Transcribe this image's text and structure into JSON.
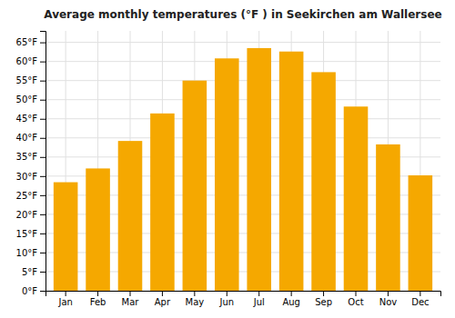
{
  "chart_data": {
    "type": "bar",
    "title": "Average monthly temperatures (°F ) in Seekirchen am Wallersee",
    "categories": [
      "Jan",
      "Feb",
      "Mar",
      "Apr",
      "May",
      "Jun",
      "Jul",
      "Aug",
      "Sep",
      "Oct",
      "Nov",
      "Dec"
    ],
    "values": [
      28.4,
      32.0,
      39.2,
      46.4,
      55.0,
      60.8,
      63.5,
      62.6,
      57.2,
      48.2,
      38.3,
      30.2
    ],
    "color": "#F5A800",
    "ylim": [
      0,
      68
    ],
    "yticks": [
      {
        "value": 0,
        "label": "0°F"
      },
      {
        "value": 5,
        "label": "5°F"
      },
      {
        "value": 10,
        "label": "10°F"
      },
      {
        "value": 15,
        "label": "15°F"
      },
      {
        "value": 20,
        "label": "20°F"
      },
      {
        "value": 25,
        "label": "25°F"
      },
      {
        "value": 30,
        "label": "30°F"
      },
      {
        "value": 35,
        "label": "35°F"
      },
      {
        "value": 40,
        "label": "40°F"
      },
      {
        "value": 45,
        "label": "45°F"
      },
      {
        "value": 50,
        "label": "50°F"
      },
      {
        "value": 55,
        "label": "55°F"
      },
      {
        "value": 60,
        "label": "60°F"
      },
      {
        "value": 65,
        "label": "65°F"
      }
    ],
    "grid": true
  }
}
